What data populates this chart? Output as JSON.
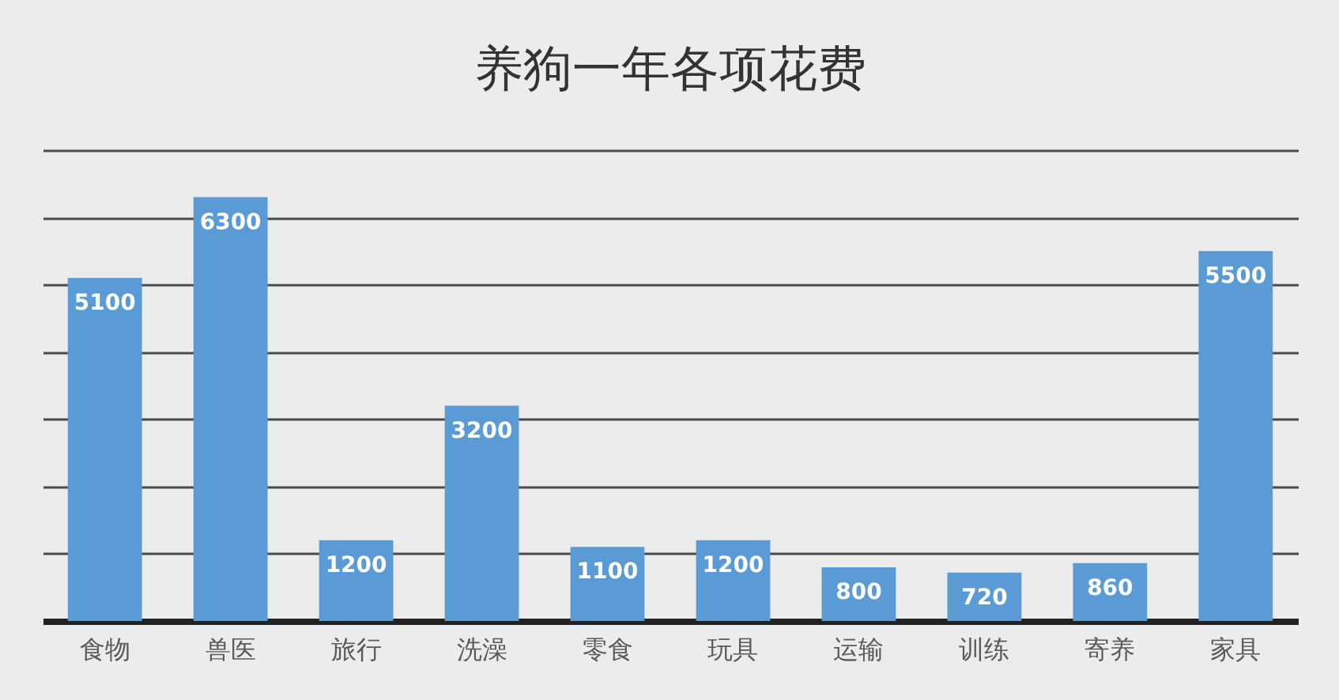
{
  "chart_data": {
    "type": "bar",
    "title": "养狗一年各项花费",
    "categories": [
      "食物",
      "兽医",
      "旅行",
      "洗澡",
      "零食",
      "玩具",
      "运输",
      "训练",
      "寄养",
      "家具"
    ],
    "values": [
      5100,
      6300,
      1200,
      3200,
      1100,
      1200,
      800,
      720,
      860,
      5500
    ],
    "color": "#5b9bd5",
    "data_labels": true,
    "ylim": [
      0,
      7000
    ],
    "yticks": [
      {
        "value": 0,
        "label": null
      },
      {
        "value": 1000,
        "label": null
      },
      {
        "value": 2000,
        "label": null
      },
      {
        "value": 3000,
        "label": null
      },
      {
        "value": 4000,
        "label": null
      },
      {
        "value": 5000,
        "label": null
      },
      {
        "value": 6000,
        "label": null
      },
      {
        "value": 7000,
        "label": null
      }
    ],
    "grid": "y",
    "tick_labels": "x"
  }
}
